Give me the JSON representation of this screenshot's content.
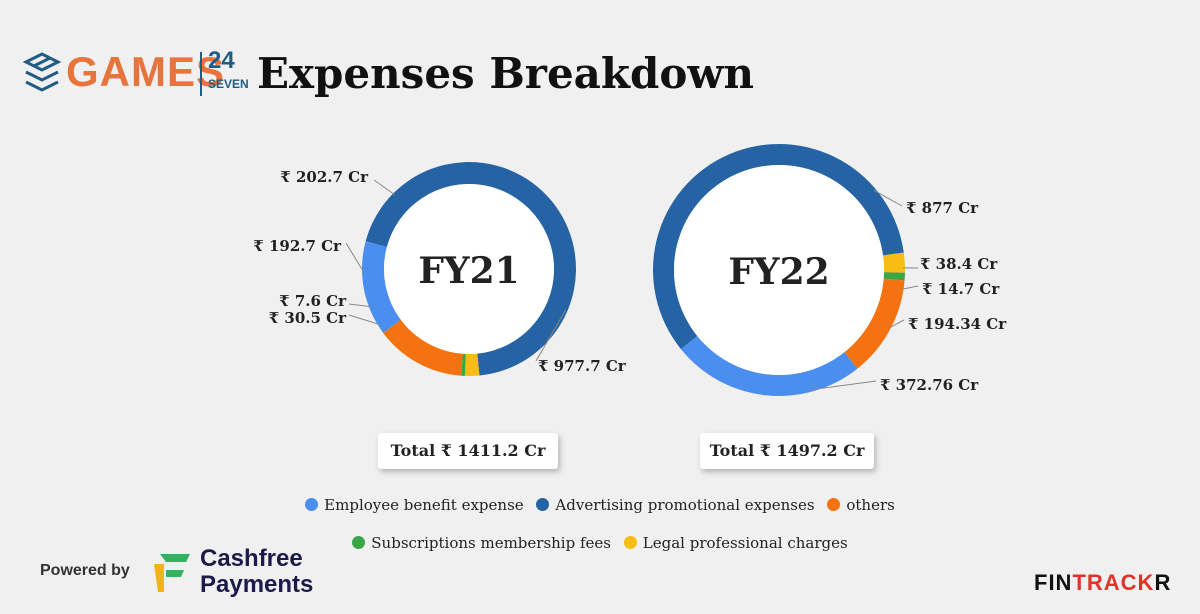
{
  "brand": {
    "logo_games": "GAMES",
    "logo_24": "24",
    "logo_seven": "SEVEN",
    "title": "Expenses Breakdown"
  },
  "colors": {
    "employee": "#4a8ef0",
    "advertising": "#2563a4",
    "others": "#f4720f",
    "subscriptions": "#3aa648",
    "legal": "#f7bd12"
  },
  "chart_data": [
    {
      "type": "pie",
      "donut": true,
      "center_label": "FY21",
      "total_label": "Total ₹ 1411.2 Cr",
      "slices": [
        {
          "category": "Advertising promotional expenses",
          "value": 977.7,
          "label": "₹ 977.7 Cr",
          "color": "#2563a4"
        },
        {
          "category": "Legal professional charges",
          "value": 30.5,
          "label": "₹ 30.5 Cr",
          "color": "#f7bd12"
        },
        {
          "category": "Subscriptions membership fees",
          "value": 7.6,
          "label": "₹ 7.6 Cr",
          "color": "#3aa648"
        },
        {
          "category": "others",
          "value": 192.7,
          "label": "₹ 192.7 Cr",
          "color": "#f4720f"
        },
        {
          "category": "Employee benefit expense",
          "value": 202.7,
          "label": "₹ 202.7 Cr",
          "color": "#4a8ef0"
        }
      ]
    },
    {
      "type": "pie",
      "donut": true,
      "center_label": "FY22",
      "total_label": "Total ₹ 1497.2 Cr",
      "slices": [
        {
          "category": "Legal professional charges",
          "value": 38.4,
          "label": "₹ 38.4 Cr",
          "color": "#f7bd12"
        },
        {
          "category": "Subscriptions membership fees",
          "value": 14.7,
          "label": "₹ 14.7 Cr",
          "color": "#3aa648"
        },
        {
          "category": "others",
          "value": 194.34,
          "label": "₹ 194.34 Cr",
          "color": "#f4720f"
        },
        {
          "category": "Employee benefit expense",
          "value": 372.76,
          "label": "₹ 372.76 Cr",
          "color": "#4a8ef0"
        },
        {
          "category": "Advertising promotional expenses",
          "value": 877,
          "label": "₹ 877 Cr",
          "color": "#2563a4"
        }
      ]
    }
  ],
  "legend": {
    "row1": [
      {
        "label": "Employee benefit expense",
        "color": "#4a8ef0"
      },
      {
        "label": "Advertising promotional expenses",
        "color": "#2563a4"
      },
      {
        "label": "others",
        "color": "#f4720f"
      }
    ],
    "row2": [
      {
        "label": "Subscriptions membership fees",
        "color": "#3aa648"
      },
      {
        "label": "Legal professional charges",
        "color": "#f7bd12"
      }
    ]
  },
  "footer": {
    "powered_by": "Powered by",
    "cashfree_name": "Cashfree",
    "cashfree_sub": "Payments",
    "fintrackr_main": "FIN",
    "fintrackr_accent": "TRACK",
    "fintrackr_end": "R"
  }
}
